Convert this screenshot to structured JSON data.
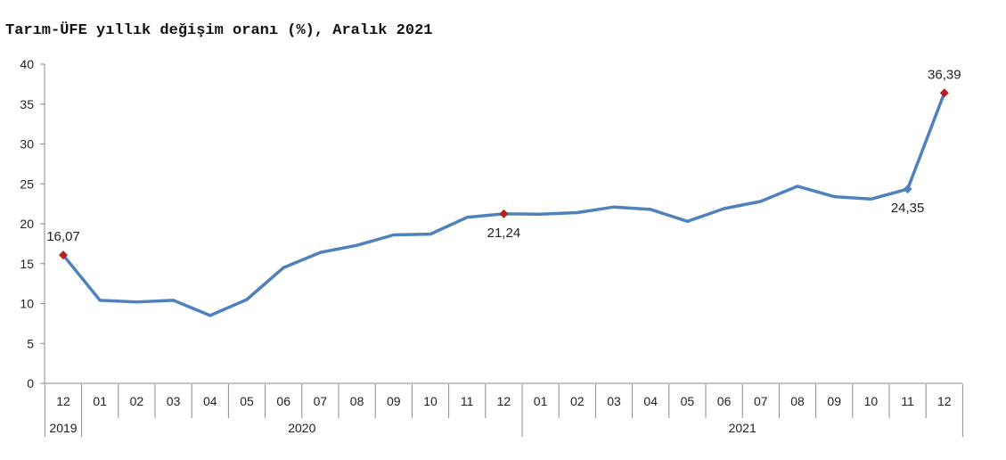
{
  "chart_data": {
    "type": "line",
    "title": "Tarım-ÜFE yıllık değişim oranı (%), Aralık 2021",
    "xlabel": "",
    "ylabel": "",
    "ylim": [
      0,
      40
    ],
    "yticks": [
      0,
      5,
      10,
      15,
      20,
      25,
      30,
      35,
      40
    ],
    "categories": [
      "12",
      "01",
      "02",
      "03",
      "04",
      "05",
      "06",
      "07",
      "08",
      "09",
      "10",
      "11",
      "12",
      "01",
      "02",
      "03",
      "04",
      "05",
      "06",
      "07",
      "08",
      "09",
      "10",
      "11",
      "12"
    ],
    "year_groups": [
      {
        "label": "2019",
        "count": 1
      },
      {
        "label": "2020",
        "count": 12
      },
      {
        "label": "2021",
        "count": 12
      }
    ],
    "series": [
      {
        "color": "#4f81bd",
        "values": [
          16.07,
          10.4,
          10.2,
          10.4,
          8.5,
          10.5,
          14.5,
          16.4,
          17.3,
          18.6,
          18.7,
          20.8,
          21.24,
          21.2,
          21.4,
          22.1,
          21.8,
          20.3,
          21.9,
          22.8,
          24.7,
          23.4,
          23.1,
          24.35,
          36.39
        ]
      }
    ],
    "highlights": [
      {
        "index": 0,
        "label": "16,07",
        "color": "#b22222",
        "label_pos": "above"
      },
      {
        "index": 12,
        "label": "21,24",
        "color": "#b22222",
        "label_pos": "below"
      },
      {
        "index": 23,
        "label": "24,35",
        "color": "#4f81bd",
        "label_pos": "below"
      },
      {
        "index": 24,
        "label": "36,39",
        "color": "#b22222",
        "label_pos": "above"
      }
    ],
    "grid": false
  }
}
